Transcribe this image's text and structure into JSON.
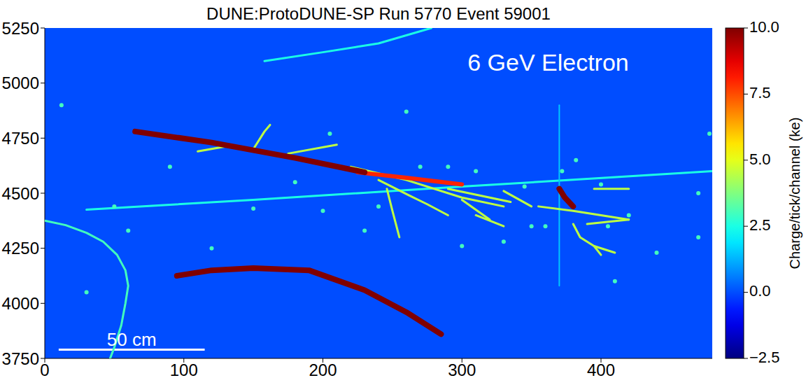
{
  "chart_data": {
    "type": "scatter",
    "title": "DUNE:ProtoDUNE-SP Run 5770 Event 59001",
    "xlim": [
      0,
      480
    ],
    "xticks": [
      0,
      100,
      200,
      300,
      400
    ],
    "ylim": [
      3750,
      5250
    ],
    "yticks": [
      3750,
      4000,
      4250,
      4500,
      4750,
      5000,
      5250
    ],
    "tick_labels": true,
    "grid": false,
    "background_charge": 0,
    "colorbar": {
      "label": "Charge/tick/channel (ke)",
      "range": [
        -2.5,
        10
      ],
      "ticks": [
        {
          "value": -2.5,
          "label": "−2.5"
        },
        {
          "value": 0,
          "label": "0.0"
        },
        {
          "value": 2.5,
          "label": "2.5"
        },
        {
          "value": 5,
          "label": "5.0"
        },
        {
          "value": 7.5,
          "label": "7.5"
        },
        {
          "value": 10,
          "label": "10.0"
        }
      ]
    },
    "annotations": [
      {
        "text": "6 GeV Electron",
        "x": 362,
        "y": 5095
      }
    ],
    "scale_bar": {
      "label": "50 cm",
      "x": [
        10,
        115
      ],
      "y": 3790
    },
    "tracks": [
      {
        "charge": 2.5,
        "points": [
          [
            158,
            5100
          ],
          [
            200,
            5140
          ],
          [
            240,
            5180
          ],
          [
            278,
            5250
          ]
        ]
      },
      {
        "charge": 2.5,
        "points": [
          [
            30,
            4425
          ],
          [
            150,
            4470
          ],
          [
            300,
            4530
          ],
          [
            480,
            4600
          ]
        ]
      },
      {
        "charge": 1.5,
        "points": [
          [
            370,
            4080
          ],
          [
            370,
            4900
          ]
        ]
      },
      {
        "charge": 3,
        "points": [
          [
            0,
            4375
          ],
          [
            15,
            4355
          ],
          [
            30,
            4320
          ],
          [
            42,
            4280
          ],
          [
            52,
            4220
          ],
          [
            58,
            4150
          ],
          [
            60,
            4080
          ],
          [
            58,
            4000
          ],
          [
            55,
            3900
          ],
          [
            50,
            3800
          ],
          [
            47,
            3750
          ]
        ]
      },
      {
        "charge": 4.5,
        "points": [
          [
            150,
            4700
          ],
          [
            158,
            4780
          ],
          [
            162,
            4810
          ]
        ]
      },
      {
        "charge": 4.5,
        "points": [
          [
            110,
            4690
          ],
          [
            130,
            4712
          ]
        ]
      },
      {
        "charge": 4.5,
        "points": [
          [
            175,
            4680
          ],
          [
            210,
            4720
          ]
        ]
      },
      {
        "charge": 4.5,
        "points": [
          [
            220,
            4620
          ],
          [
            260,
            4560
          ],
          [
            300,
            4480
          ],
          [
            330,
            4440
          ]
        ]
      },
      {
        "charge": 4.5,
        "points": [
          [
            240,
            4560
          ],
          [
            262,
            4490
          ],
          [
            275,
            4450
          ],
          [
            290,
            4400
          ]
        ]
      },
      {
        "charge": 4.5,
        "points": [
          [
            246,
            4520
          ],
          [
            250,
            4420
          ],
          [
            255,
            4300
          ]
        ]
      },
      {
        "charge": 4.5,
        "points": [
          [
            290,
            4520
          ],
          [
            335,
            4460
          ]
        ]
      },
      {
        "charge": 4.5,
        "points": [
          [
            300,
            4470
          ],
          [
            320,
            4380
          ]
        ]
      },
      {
        "charge": 4.5,
        "points": [
          [
            310,
            4400
          ],
          [
            330,
            4350
          ]
        ]
      },
      {
        "charge": 4.5,
        "points": [
          [
            330,
            4510
          ],
          [
            350,
            4440
          ]
        ]
      },
      {
        "charge": 4.5,
        "points": [
          [
            355,
            4440
          ],
          [
            380,
            4420
          ],
          [
            420,
            4380
          ]
        ]
      },
      {
        "charge": 4.5,
        "points": [
          [
            390,
            4360
          ],
          [
            420,
            4380
          ]
        ]
      },
      {
        "charge": 4.5,
        "points": [
          [
            380,
            4360
          ],
          [
            385,
            4300
          ],
          [
            395,
            4260
          ],
          [
            400,
            4220
          ]
        ]
      },
      {
        "charge": 4.5,
        "points": [
          [
            395,
            4260
          ],
          [
            410,
            4230
          ]
        ]
      },
      {
        "charge": 4.5,
        "points": [
          [
            395,
            4520
          ],
          [
            420,
            4520
          ]
        ]
      },
      {
        "charge": 8,
        "points": [
          [
            225,
            4595
          ],
          [
            260,
            4570
          ],
          [
            300,
            4540
          ]
        ]
      },
      {
        "charge": 10,
        "points": [
          [
            65,
            4780
          ],
          [
            120,
            4730
          ],
          [
            180,
            4660
          ],
          [
            230,
            4595
          ]
        ]
      },
      {
        "charge": 10,
        "points": [
          [
            95,
            4125
          ],
          [
            120,
            4150
          ],
          [
            150,
            4160
          ],
          [
            190,
            4150
          ],
          [
            230,
            4060
          ],
          [
            260,
            3960
          ],
          [
            285,
            3860
          ]
        ]
      },
      {
        "charge": 10,
        "points": [
          [
            370,
            4520
          ],
          [
            374,
            4480
          ],
          [
            380,
            4440
          ]
        ]
      }
    ],
    "hits": {
      "charge": 3,
      "points": [
        [
          12,
          4900
        ],
        [
          50,
          4440
        ],
        [
          90,
          4620
        ],
        [
          60,
          4330
        ],
        [
          330,
          4280
        ],
        [
          360,
          4350
        ],
        [
          405,
          4350
        ],
        [
          420,
          4400
        ],
        [
          440,
          4230
        ],
        [
          470,
          4300
        ],
        [
          478,
          4770
        ],
        [
          150,
          4430
        ],
        [
          180,
          4550
        ],
        [
          205,
          4770
        ],
        [
          230,
          4330
        ],
        [
          270,
          4620
        ],
        [
          290,
          4620
        ],
        [
          310,
          4600
        ],
        [
          345,
          4530
        ],
        [
          372,
          4600
        ],
        [
          382,
          4650
        ],
        [
          400,
          4540
        ],
        [
          260,
          4870
        ],
        [
          120,
          4250
        ],
        [
          240,
          4440
        ],
        [
          200,
          4420
        ],
        [
          350,
          4350
        ],
        [
          300,
          4260
        ],
        [
          410,
          4100
        ],
        [
          30,
          4050
        ],
        [
          470,
          4500
        ]
      ]
    }
  }
}
